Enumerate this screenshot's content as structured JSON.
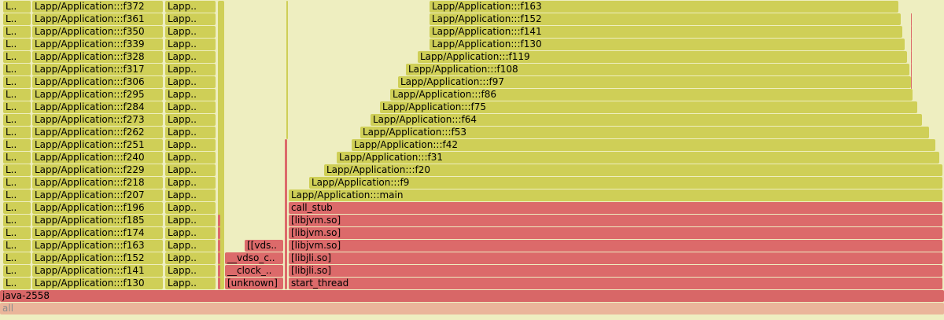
{
  "frames": [
    {
      "id": "f-all",
      "label": "all",
      "color": "all"
    },
    {
      "id": "f-root",
      "label": "java-2558",
      "color": "root"
    },
    {
      "id": "l-130",
      "label": "Lapp/Application:::f130",
      "color": "yellow"
    },
    {
      "id": "l-141",
      "label": "Lapp/Application:::f141",
      "color": "yellow"
    },
    {
      "id": "l-152",
      "label": "Lapp/Application:::f152",
      "color": "yellow"
    },
    {
      "id": "l-163",
      "label": "Lapp/Application:::f163",
      "color": "yellow"
    },
    {
      "id": "l-174",
      "label": "Lapp/Application:::f174",
      "color": "yellow"
    },
    {
      "id": "l-185",
      "label": "Lapp/Application:::f185",
      "color": "yellow"
    },
    {
      "id": "l-196",
      "label": "Lapp/Application:::f196",
      "color": "yellow"
    },
    {
      "id": "l-207",
      "label": "Lapp/Application:::f207",
      "color": "yellow"
    },
    {
      "id": "l-218",
      "label": "Lapp/Application:::f218",
      "color": "yellow"
    },
    {
      "id": "l-229",
      "label": "Lapp/Application:::f229",
      "color": "yellow"
    },
    {
      "id": "l-240",
      "label": "Lapp/Application:::f240",
      "color": "yellow"
    },
    {
      "id": "l-251",
      "label": "Lapp/Application:::f251",
      "color": "yellow"
    },
    {
      "id": "l-262",
      "label": "Lapp/Application:::f262",
      "color": "yellow"
    },
    {
      "id": "l-273",
      "label": "Lapp/Application:::f273",
      "color": "yellow"
    },
    {
      "id": "l-284",
      "label": "Lapp/Application:::f284",
      "color": "yellow"
    },
    {
      "id": "l-295",
      "label": "Lapp/Application:::f295",
      "color": "yellow"
    },
    {
      "id": "l-306",
      "label": "Lapp/Application:::f306",
      "color": "yellow"
    },
    {
      "id": "l-317",
      "label": "Lapp/Application:::f317",
      "color": "yellow"
    },
    {
      "id": "l-328",
      "label": "Lapp/Application:::f328",
      "color": "yellow"
    },
    {
      "id": "l-339",
      "label": "Lapp/Application:::f339",
      "color": "yellow"
    },
    {
      "id": "l-350",
      "label": "Lapp/Application:::f350",
      "color": "yellow"
    },
    {
      "id": "l-361",
      "label": "Lapp/Application:::f361",
      "color": "yellow"
    },
    {
      "id": "l-372",
      "label": "Lapp/Application:::f372",
      "color": "yellow"
    },
    {
      "id": "left-col-0",
      "label": "L..",
      "color": "yellow"
    },
    {
      "id": "left-col-1",
      "label": "L..",
      "color": "yellow"
    },
    {
      "id": "left-col-2",
      "label": "L..",
      "color": "yellow"
    },
    {
      "id": "left-col-3",
      "label": "L..",
      "color": "yellow"
    },
    {
      "id": "left-col-4",
      "label": "L..",
      "color": "yellow"
    },
    {
      "id": "left-col-5",
      "label": "L..",
      "color": "yellow"
    },
    {
      "id": "left-col-6",
      "label": "L..",
      "color": "yellow"
    },
    {
      "id": "left-col-7",
      "label": "L..",
      "color": "yellow"
    },
    {
      "id": "left-col-8",
      "label": "L..",
      "color": "yellow"
    },
    {
      "id": "left-col-9",
      "label": "L..",
      "color": "yellow"
    },
    {
      "id": "left-col-10",
      "label": "L..",
      "color": "yellow"
    },
    {
      "id": "left-col-11",
      "label": "L..",
      "color": "yellow"
    },
    {
      "id": "left-col-12",
      "label": "L..",
      "color": "yellow"
    },
    {
      "id": "left-col-13",
      "label": "L..",
      "color": "yellow"
    },
    {
      "id": "left-col-14",
      "label": "L..",
      "color": "yellow"
    },
    {
      "id": "left-col-15",
      "label": "L..",
      "color": "yellow"
    },
    {
      "id": "left-col-16",
      "label": "L..",
      "color": "yellow"
    },
    {
      "id": "left-col-17",
      "label": "L..",
      "color": "yellow"
    },
    {
      "id": "left-col-18",
      "label": "L..",
      "color": "yellow"
    },
    {
      "id": "left-col-19",
      "label": "L..",
      "color": "yellow"
    },
    {
      "id": "left-col-20",
      "label": "L..",
      "color": "yellow"
    },
    {
      "id": "left-col-21",
      "label": "L..",
      "color": "yellow"
    },
    {
      "id": "left-col-22",
      "label": "L..",
      "color": "yellow"
    },
    {
      "id": "lapp-col-0",
      "label": "Lapp..",
      "color": "yellow"
    },
    {
      "id": "lapp-col-1",
      "label": "Lapp..",
      "color": "yellow"
    },
    {
      "id": "lapp-col-2",
      "label": "Lapp..",
      "color": "yellow"
    },
    {
      "id": "lapp-col-3",
      "label": "Lapp..",
      "color": "yellow"
    },
    {
      "id": "lapp-col-4",
      "label": "Lapp..",
      "color": "yellow"
    },
    {
      "id": "lapp-col-5",
      "label": "Lapp..",
      "color": "yellow"
    },
    {
      "id": "lapp-col-6",
      "label": "Lapp..",
      "color": "yellow"
    },
    {
      "id": "lapp-col-7",
      "label": "Lapp..",
      "color": "yellow"
    },
    {
      "id": "lapp-col-8",
      "label": "Lapp..",
      "color": "yellow"
    },
    {
      "id": "lapp-col-9",
      "label": "Lapp..",
      "color": "yellow"
    },
    {
      "id": "lapp-col-10",
      "label": "Lapp..",
      "color": "yellow"
    },
    {
      "id": "lapp-col-11",
      "label": "Lapp..",
      "color": "yellow"
    },
    {
      "id": "lapp-col-12",
      "label": "Lapp..",
      "color": "yellow"
    },
    {
      "id": "lapp-col-13",
      "label": "Lapp..",
      "color": "yellow"
    },
    {
      "id": "lapp-col-14",
      "label": "Lapp..",
      "color": "yellow"
    },
    {
      "id": "lapp-col-15",
      "label": "Lapp..",
      "color": "yellow"
    },
    {
      "id": "lapp-col-16",
      "label": "Lapp..",
      "color": "yellow"
    },
    {
      "id": "lapp-col-17",
      "label": "Lapp..",
      "color": "yellow"
    },
    {
      "id": "lapp-col-18",
      "label": "Lapp..",
      "color": "yellow"
    },
    {
      "id": "lapp-col-19",
      "label": "Lapp..",
      "color": "yellow"
    },
    {
      "id": "lapp-col-20",
      "label": "Lapp..",
      "color": "yellow"
    },
    {
      "id": "lapp-col-21",
      "label": "Lapp..",
      "color": "yellow"
    },
    {
      "id": "lapp-col-22",
      "label": "Lapp..",
      "color": "yellow"
    },
    {
      "id": "unknown",
      "label": "[unknown]",
      "color": "red"
    },
    {
      "id": "clock",
      "label": "__clock_..",
      "color": "red"
    },
    {
      "id": "vdso-c",
      "label": "__vdso_c..",
      "color": "red"
    },
    {
      "id": "vds",
      "label": "[[vds..",
      "color": "red"
    },
    {
      "id": "start-thread",
      "label": "start_thread",
      "color": "red"
    },
    {
      "id": "libjli-1",
      "label": "[libjli.so]",
      "color": "red"
    },
    {
      "id": "libjli-2",
      "label": "[libjli.so]",
      "color": "red"
    },
    {
      "id": "libjvm-1",
      "label": "[libjvm.so]",
      "color": "red"
    },
    {
      "id": "libjvm-2",
      "label": "[libjvm.so]",
      "color": "red"
    },
    {
      "id": "libjvm-3",
      "label": "[libjvm.so]",
      "color": "red"
    },
    {
      "id": "call-stub",
      "label": "call_stub",
      "color": "red"
    },
    {
      "id": "main",
      "label": "Lapp/Application:::main",
      "color": "yellow"
    },
    {
      "id": "f9",
      "label": "Lapp/Application:::f9",
      "color": "yellow"
    },
    {
      "id": "f20",
      "label": "Lapp/Application:::f20",
      "color": "yellow"
    },
    {
      "id": "f31",
      "label": "Lapp/Application:::f31",
      "color": "yellow"
    },
    {
      "id": "f42",
      "label": "Lapp/Application:::f42",
      "color": "yellow"
    },
    {
      "id": "f53",
      "label": "Lapp/Application:::f53",
      "color": "yellow"
    },
    {
      "id": "f64",
      "label": "Lapp/Application:::f64",
      "color": "yellow"
    },
    {
      "id": "f75",
      "label": "Lapp/Application:::f75",
      "color": "yellow"
    },
    {
      "id": "f86",
      "label": "Lapp/Application:::f86",
      "color": "yellow"
    },
    {
      "id": "f97",
      "label": "Lapp/Application:::f97",
      "color": "yellow"
    },
    {
      "id": "f108",
      "label": "Lapp/Application:::f108",
      "color": "yellow"
    },
    {
      "id": "f119",
      "label": "Lapp/Application:::f119",
      "color": "yellow"
    },
    {
      "id": "f130",
      "label": "Lapp/Application:::f130",
      "color": "yellow"
    },
    {
      "id": "f141",
      "label": "Lapp/Application:::f141",
      "color": "yellow"
    },
    {
      "id": "f152",
      "label": "Lapp/Application:::f152",
      "color": "yellow"
    },
    {
      "id": "f163",
      "label": "Lapp/Application:::f163",
      "color": "yellow"
    }
  ]
}
